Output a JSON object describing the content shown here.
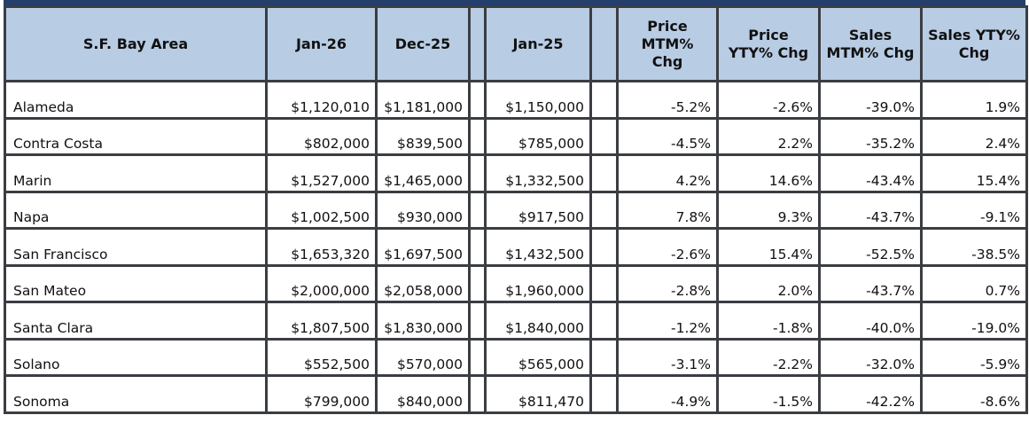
{
  "table": {
    "headers": [
      "S.F. Bay Area",
      "Jan-26",
      "Dec-25",
      "Jan-25",
      "Price MTM% Chg",
      "Price YTY% Chg",
      "Sales MTM% Chg",
      "Sales YTY% Chg"
    ],
    "rows": [
      [
        "Alameda",
        "$1,120,010",
        "$1,181,000",
        "$1,150,000",
        "-5.2%",
        "-2.6%",
        "-39.0%",
        "1.9%"
      ],
      [
        "Contra Costa",
        "$802,000",
        "$839,500",
        "$785,000",
        "-4.5%",
        "2.2%",
        "-35.2%",
        "2.4%"
      ],
      [
        "Marin",
        "$1,527,000",
        "$1,465,000",
        "$1,332,500",
        "4.2%",
        "14.6%",
        "-43.4%",
        "15.4%"
      ],
      [
        "Napa",
        "$1,002,500",
        "$930,000",
        "$917,500",
        "7.8%",
        "9.3%",
        "-43.7%",
        "-9.1%"
      ],
      [
        "San Francisco",
        "$1,653,320",
        "$1,697,500",
        "$1,432,500",
        "-2.6%",
        "15.4%",
        "-52.5%",
        "-38.5%"
      ],
      [
        "San Mateo",
        "$2,000,000",
        "$2,058,000",
        "$1,960,000",
        "-2.8%",
        "2.0%",
        "-43.7%",
        "0.7%"
      ],
      [
        "Santa Clara",
        "$1,807,500",
        "$1,830,000",
        "$1,840,000",
        "-1.2%",
        "-1.8%",
        "-40.0%",
        "-19.0%"
      ],
      [
        "Solano",
        "$552,500",
        "$570,000",
        "$565,000",
        "-3.1%",
        "-2.2%",
        "-32.0%",
        "-5.9%"
      ],
      [
        "Sonoma",
        "$799,000",
        "$840,000",
        "$811,470",
        "-4.9%",
        "-1.5%",
        "-42.2%",
        "-8.6%"
      ]
    ]
  },
  "colors": {
    "header_bg": "#b8cce4",
    "top_band": "#243f6b",
    "border": "#3a3d42"
  }
}
